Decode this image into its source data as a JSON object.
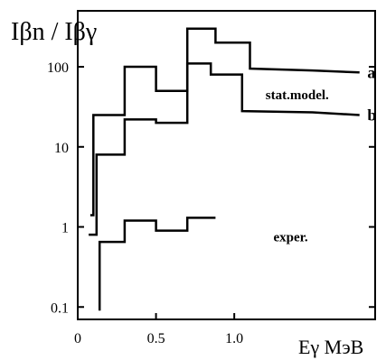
{
  "chart_data": {
    "type": "line",
    "title": "",
    "ylabel": "Iβn / Iβγ",
    "xlabel": "Eγ МэВ",
    "yscale": "log",
    "xlim": [
      0.0,
      1.9
    ],
    "ylim": [
      0.07,
      500
    ],
    "grid": false,
    "x_ticks": [
      {
        "value": 0,
        "label": "0"
      },
      {
        "value": 0.5,
        "label": "0.5"
      },
      {
        "value": 1.0,
        "label": "1.0"
      }
    ],
    "y_ticks": [
      {
        "value": 0.1,
        "label": "0.1"
      },
      {
        "value": 1,
        "label": "1"
      },
      {
        "value": 10,
        "label": "10"
      },
      {
        "value": 100,
        "label": "100"
      }
    ],
    "series": [
      {
        "name": "a",
        "color": "#000000",
        "points": [
          [
            0.08,
            1.4
          ],
          [
            0.1,
            1.4
          ],
          [
            0.1,
            25
          ],
          [
            0.3,
            25
          ],
          [
            0.3,
            100
          ],
          [
            0.5,
            100
          ],
          [
            0.5,
            50
          ],
          [
            0.7,
            50
          ],
          [
            0.7,
            300
          ],
          [
            0.88,
            300
          ],
          [
            0.88,
            200
          ],
          [
            1.1,
            200
          ],
          [
            1.1,
            95
          ],
          [
            1.5,
            90
          ],
          [
            1.8,
            85
          ]
        ]
      },
      {
        "name": "b",
        "color": "#000000",
        "points": [
          [
            0.07,
            0.8
          ],
          [
            0.12,
            0.8
          ],
          [
            0.12,
            8
          ],
          [
            0.3,
            8
          ],
          [
            0.3,
            22
          ],
          [
            0.5,
            22
          ],
          [
            0.5,
            20
          ],
          [
            0.7,
            20
          ],
          [
            0.7,
            110
          ],
          [
            0.85,
            110
          ],
          [
            0.85,
            80
          ],
          [
            1.05,
            80
          ],
          [
            1.05,
            28
          ],
          [
            1.5,
            27
          ],
          [
            1.8,
            25
          ]
        ]
      },
      {
        "name": "exper.",
        "color": "#000000",
        "points": [
          [
            0.14,
            0.09
          ],
          [
            0.14,
            0.65
          ],
          [
            0.3,
            0.65
          ],
          [
            0.3,
            1.2
          ],
          [
            0.5,
            1.2
          ],
          [
            0.5,
            0.9
          ],
          [
            0.7,
            0.9
          ],
          [
            0.7,
            1.3
          ],
          [
            0.88,
            1.3
          ]
        ]
      }
    ],
    "annotations": [
      {
        "text": "a",
        "x": 1.85,
        "y": 85
      },
      {
        "text": "b",
        "x": 1.85,
        "y": 25
      },
      {
        "text": "stat.model.",
        "x": 1.2,
        "y": 45
      },
      {
        "text": "exper.",
        "x": 1.25,
        "y": 0.75
      }
    ]
  }
}
